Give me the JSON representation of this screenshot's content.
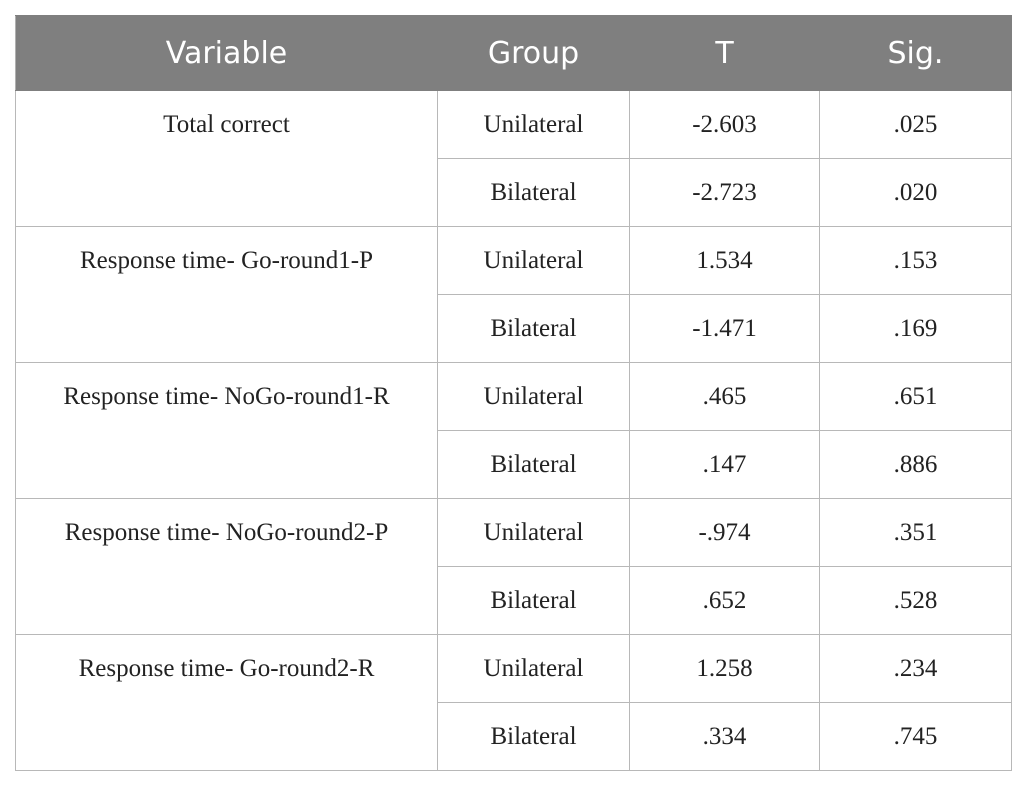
{
  "table": {
    "header": [
      "Variable",
      "Group",
      "T",
      "Sig."
    ],
    "rows": [
      {
        "variable": "Total correct",
        "groups": [
          {
            "group": "Unilateral",
            "t": "-2.603",
            "sig": ".025"
          },
          {
            "group": "Bilateral",
            "t": "-2.723",
            "sig": ".020"
          }
        ]
      },
      {
        "variable": "Response time- Go-round1-P",
        "groups": [
          {
            "group": "Unilateral",
            "t": "1.534",
            "sig": ".153"
          },
          {
            "group": "Bilateral",
            "t": "-1.471",
            "sig": ".169"
          }
        ]
      },
      {
        "variable": "Response time- NoGo-round1-R",
        "groups": [
          {
            "group": "Unilateral",
            "t": ".465",
            "sig": ".651"
          },
          {
            "group": "Bilateral",
            "t": ".147",
            "sig": ".886"
          }
        ]
      },
      {
        "variable": "Response time- NoGo-round2-P",
        "groups": [
          {
            "group": "Unilateral",
            "t": "-.974",
            "sig": ".351"
          },
          {
            "group": "Bilateral",
            "t": ".652",
            "sig": ".528"
          }
        ]
      },
      {
        "variable": "Response time- Go-round2-R",
        "groups": [
          {
            "group": "Unilateral",
            "t": "1.258",
            "sig": ".234"
          },
          {
            "group": "Bilateral",
            "t": ".334",
            "sig": ".745"
          }
        ]
      }
    ]
  }
}
